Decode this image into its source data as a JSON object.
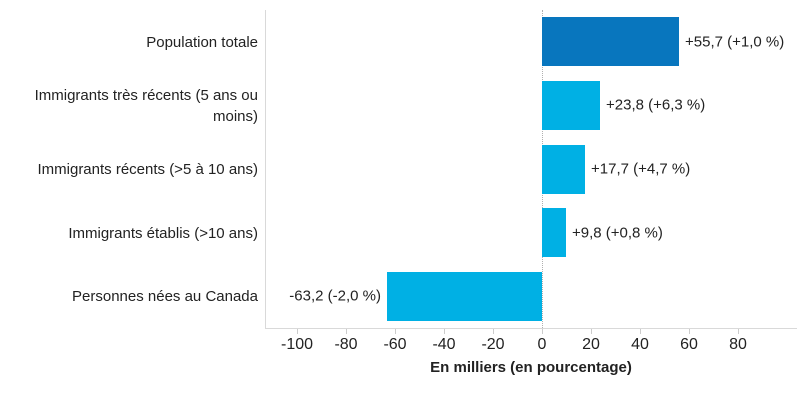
{
  "chart_data": {
    "type": "bar",
    "orientation": "horizontal",
    "title": "",
    "xlabel": "En milliers (en pourcentage)",
    "ylabel": "",
    "categories": [
      "Population totale",
      "Immigrants très récents (5 ans ou moins)",
      "Immigrants récents (>5 à 10 ans)",
      "Immigrants établis (>10 ans)",
      "Personnes nées au Canada"
    ],
    "values": [
      55.7,
      23.8,
      17.7,
      9.8,
      -63.2
    ],
    "value_labels": [
      "+55,7 (+1,0 %)",
      "+23,8 (+6,3 %)",
      "+17,7 (+4,7 %)",
      "+9,8 (+0,8 %)",
      "-63,2 (-2,0 %)"
    ],
    "bar_colors": [
      "#0876BE",
      "#00B0E4",
      "#00B0E4",
      "#00B0E4",
      "#00B0E4"
    ],
    "xticks": [
      -100,
      -80,
      -60,
      -40,
      -20,
      0,
      20,
      40,
      60,
      80
    ],
    "xtick_labels": [
      "-100",
      "-80",
      "-60",
      "-40",
      "-20",
      "0",
      "20",
      "40",
      "60",
      "80"
    ],
    "xlim": [
      -113,
      104
    ],
    "grid": "zero-line-only",
    "legend": false,
    "accent_colors": {
      "dark_blue": "#0876BE",
      "cyan": "#00B0E4",
      "axis_gray": "#d9d9d9",
      "zero_line_gray": "#b0b0b0",
      "text": "#222222"
    }
  }
}
